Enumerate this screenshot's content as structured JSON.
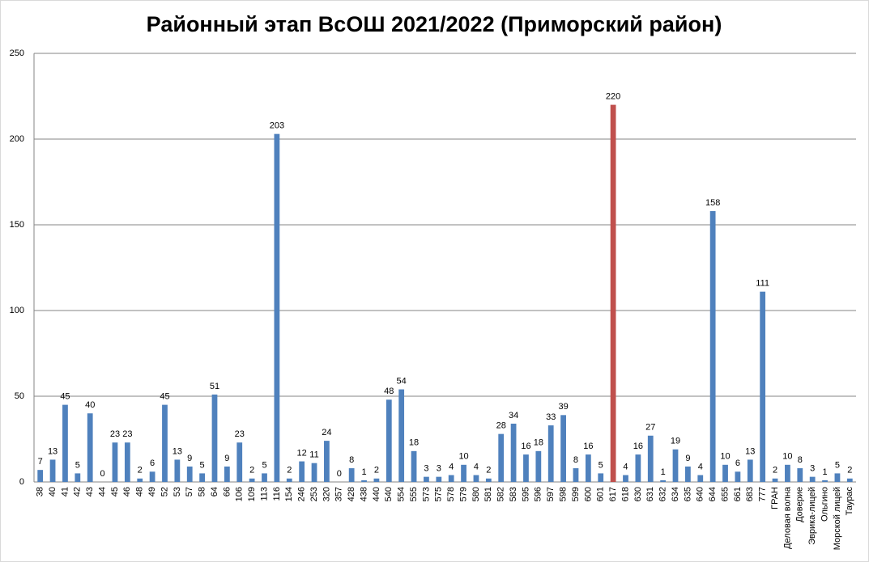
{
  "chart_data": {
    "type": "bar",
    "title": "Районный этап ВсОШ 2021/2022 (Приморский район)",
    "categories": [
      "38",
      "40",
      "41",
      "42",
      "43",
      "44",
      "45",
      "46",
      "48",
      "49",
      "52",
      "53",
      "57",
      "58",
      "64",
      "66",
      "106",
      "109",
      "113",
      "116",
      "154",
      "246",
      "253",
      "320",
      "357",
      "428",
      "438",
      "440",
      "540",
      "554",
      "555",
      "573",
      "575",
      "578",
      "579",
      "580",
      "581",
      "582",
      "583",
      "595",
      "596",
      "597",
      "598",
      "599",
      "600",
      "601",
      "617",
      "618",
      "630",
      "631",
      "632",
      "634",
      "635",
      "640",
      "644",
      "655",
      "661",
      "683",
      "777",
      "ГРАН",
      "Деловая волна",
      "Доверие",
      "Эврика-лицей",
      "Ольгино",
      "Морской лицей",
      "Таурас"
    ],
    "values": [
      7,
      13,
      45,
      5,
      40,
      0,
      23,
      23,
      2,
      6,
      45,
      13,
      9,
      5,
      51,
      9,
      23,
      2,
      5,
      203,
      2,
      12,
      11,
      24,
      0,
      8,
      1,
      2,
      48,
      54,
      18,
      3,
      3,
      4,
      10,
      4,
      2,
      28,
      34,
      16,
      18,
      33,
      39,
      8,
      16,
      5,
      220,
      4,
      16,
      27,
      1,
      19,
      9,
      4,
      158,
      10,
      6,
      13,
      111,
      2,
      10,
      8,
      3,
      1,
      5,
      2
    ],
    "colors": [
      "#4f81bd",
      "#4f81bd",
      "#4f81bd",
      "#4f81bd",
      "#4f81bd",
      "#4f81bd",
      "#4f81bd",
      "#4f81bd",
      "#4f81bd",
      "#4f81bd",
      "#4f81bd",
      "#4f81bd",
      "#4f81bd",
      "#4f81bd",
      "#4f81bd",
      "#4f81bd",
      "#4f81bd",
      "#4f81bd",
      "#4f81bd",
      "#4f81bd",
      "#4f81bd",
      "#4f81bd",
      "#4f81bd",
      "#4f81bd",
      "#4f81bd",
      "#4f81bd",
      "#4f81bd",
      "#4f81bd",
      "#4f81bd",
      "#4f81bd",
      "#4f81bd",
      "#4f81bd",
      "#4f81bd",
      "#4f81bd",
      "#4f81bd",
      "#4f81bd",
      "#4f81bd",
      "#4f81bd",
      "#4f81bd",
      "#4f81bd",
      "#4f81bd",
      "#4f81bd",
      "#4f81bd",
      "#4f81bd",
      "#4f81bd",
      "#4f81bd",
      "#c0504d",
      "#4f81bd",
      "#4f81bd",
      "#4f81bd",
      "#4f81bd",
      "#4f81bd",
      "#4f81bd",
      "#4f81bd",
      "#4f81bd",
      "#4f81bd",
      "#4f81bd",
      "#4f81bd",
      "#4f81bd",
      "#4f81bd",
      "#4f81bd",
      "#4f81bd",
      "#4f81bd",
      "#4f81bd",
      "#4f81bd",
      "#4f81bd"
    ],
    "ylim": [
      0,
      250
    ],
    "yticks": [
      0,
      50,
      100,
      150,
      200,
      250
    ],
    "grid": true
  }
}
